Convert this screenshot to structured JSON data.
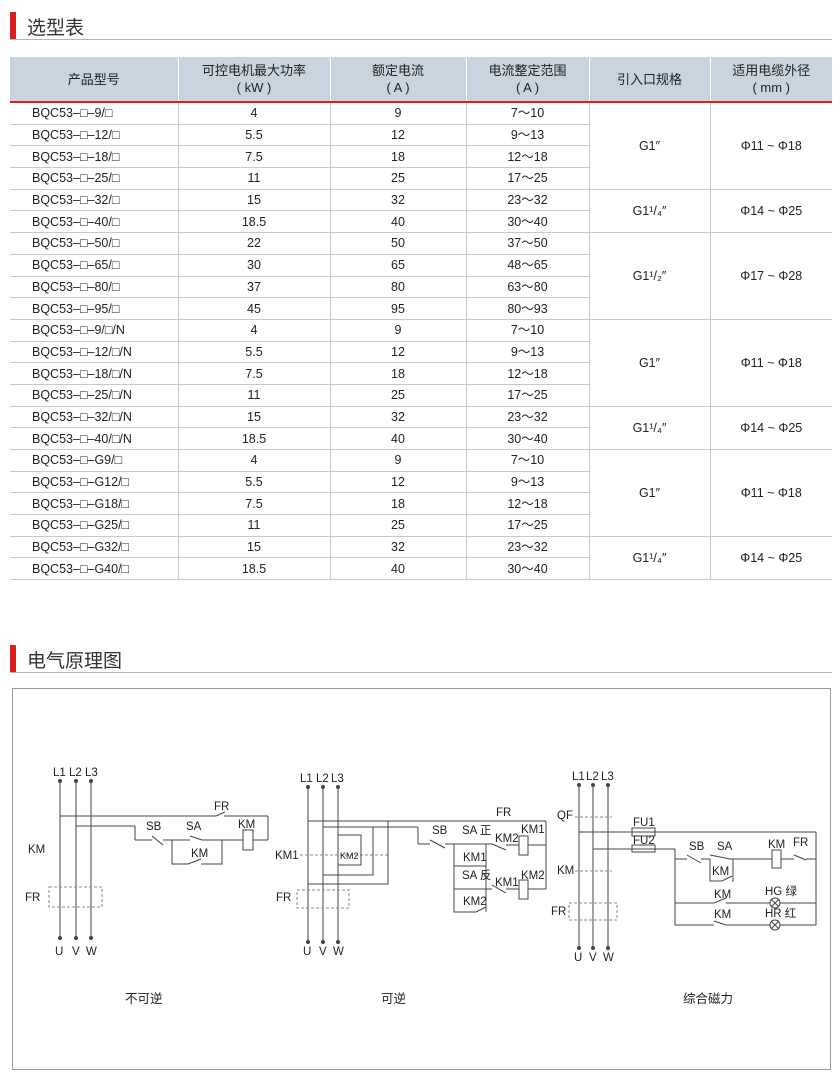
{
  "sections": {
    "selection_title": "选型表",
    "schematic_title": "电气原理图"
  },
  "colors": {
    "accent": "#d9201f",
    "header_bg": "#c8d4de"
  },
  "table": {
    "headers": [
      {
        "label": "产品型号",
        "unit": ""
      },
      {
        "label": "可控电机最大功率",
        "unit": "( kW )"
      },
      {
        "label": "额定电流",
        "unit": "( A )"
      },
      {
        "label": "电流整定范围",
        "unit": "( A )"
      },
      {
        "label": "引入口规格",
        "unit": ""
      },
      {
        "label": "适用电缆外径",
        "unit": "( mm )"
      }
    ],
    "groups": [
      {
        "inlet": "G1″",
        "cable": "Φ11 ~ Φ18",
        "rows": [
          [
            "BQC53–□–9/□",
            "4",
            "9",
            "7～10"
          ],
          [
            "BQC53–□–12/□",
            "5.5",
            "12",
            "9～13"
          ],
          [
            "BQC53–□–18/□",
            "7.5",
            "18",
            "12～18"
          ],
          [
            "BQC53–□–25/□",
            "11",
            "25",
            "17～25"
          ]
        ]
      },
      {
        "inlet": "G1¹/₄″",
        "cable": "Φ14 ~ Φ25",
        "rows": [
          [
            "BQC53–□–32/□",
            "15",
            "32",
            "23～32"
          ],
          [
            "BQC53–□–40/□",
            "18.5",
            "40",
            "30～40"
          ]
        ]
      },
      {
        "inlet": "G1¹/₂″",
        "cable": "Φ17 ~ Φ28",
        "rows": [
          [
            "BQC53–□–50/□",
            "22",
            "50",
            "37～50"
          ],
          [
            "BQC53–□–65/□",
            "30",
            "65",
            "48～65"
          ],
          [
            "BQC53–□–80/□",
            "37",
            "80",
            "63～80"
          ],
          [
            "BQC53–□–95/□",
            "45",
            "95",
            "80～93"
          ]
        ]
      },
      {
        "inlet": "G1″",
        "cable": "Φ11 ~ Φ18",
        "rows": [
          [
            "BQC53–□–9/□/N",
            "4",
            "9",
            "7～10"
          ],
          [
            "BQC53–□–12/□/N",
            "5.5",
            "12",
            "9～13"
          ],
          [
            "BQC53–□–18/□/N",
            "7.5",
            "18",
            "12～18"
          ],
          [
            "BQC53–□–25/□/N",
            "11",
            "25",
            "17～25"
          ]
        ]
      },
      {
        "inlet": "G1¹/₄″",
        "cable": "Φ14 ~ Φ25",
        "rows": [
          [
            "BQC53–□–32/□/N",
            "15",
            "32",
            "23～32"
          ],
          [
            "BQC53–□–40/□/N",
            "18.5",
            "40",
            "30～40"
          ]
        ]
      },
      {
        "inlet": "G1″",
        "cable": "Φ11 ~ Φ18",
        "rows": [
          [
            "BQC53–□–G9/□",
            "4",
            "9",
            "7～10"
          ],
          [
            "BQC53–□–G12/□",
            "5.5",
            "12",
            "9～13"
          ],
          [
            "BQC53–□–G18/□",
            "7.5",
            "18",
            "12～18"
          ],
          [
            "BQC53–□–G25/□",
            "11",
            "25",
            "17～25"
          ]
        ]
      },
      {
        "inlet": "G1¹/₄″",
        "cable": "Φ14 ~ Φ25",
        "rows": [
          [
            "BQC53–□–G32/□",
            "15",
            "32",
            "23～32"
          ],
          [
            "BQC53–□–G40/□",
            "18.5",
            "40",
            "30～40"
          ]
        ]
      }
    ]
  },
  "diagrams": {
    "phases": [
      "L1",
      "L2",
      "L3"
    ],
    "outputs": [
      "U",
      "V",
      "W"
    ],
    "d1": {
      "caption": "不可逆",
      "km": "KM",
      "fr": "FR",
      "sb": "SB",
      "sa": "SA",
      "coil": "KM",
      "hold": "KM"
    },
    "d2": {
      "caption": "可逆",
      "km1": "KM1",
      "km2": "KM2",
      "fr": "FR",
      "sb": "SB",
      "sa_fwd": "SA 正",
      "sa_rev": "SA 反"
    },
    "d3": {
      "caption": "综合磁力",
      "qf": "QF",
      "km": "KM",
      "fr": "FR",
      "fu1": "FU1",
      "fu2": "FU2",
      "sb": "SB",
      "sa": "SA",
      "hg": "HG 绿",
      "hr": "HR 红"
    }
  }
}
